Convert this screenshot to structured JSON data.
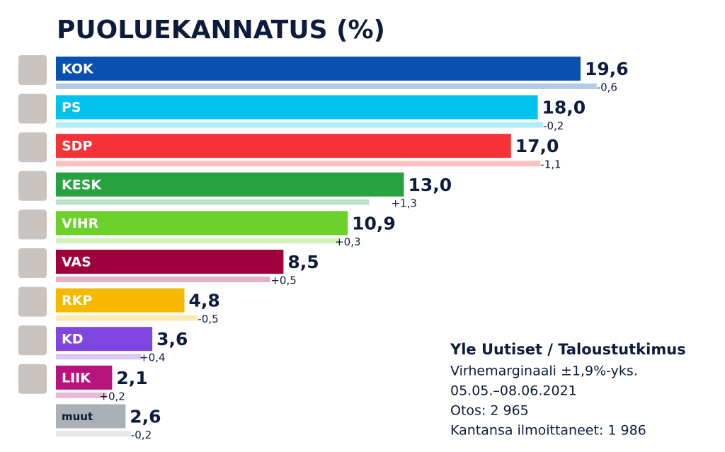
{
  "chart_data": {
    "type": "bar",
    "title": "PUOLUEKANNATUS (%)",
    "categories": [
      "KOK",
      "PS",
      "SDP",
      "KESK",
      "VIHR",
      "VAS",
      "RKP",
      "KD",
      "LIIK",
      "muut"
    ],
    "values": [
      19.6,
      18.0,
      17.0,
      13.0,
      10.9,
      8.5,
      4.8,
      3.6,
      2.1,
      2.6
    ],
    "value_labels": [
      "19,6",
      "18,0",
      "17,0",
      "13,0",
      "10,9",
      "8,5",
      "4,8",
      "3,6",
      "2,1",
      "2,6"
    ],
    "changes": [
      -0.6,
      -0.2,
      -1.1,
      1.3,
      0.3,
      0.5,
      -0.5,
      0.4,
      0.2,
      -0.2
    ],
    "change_labels": [
      "-0,6",
      "-0,2",
      "-1,1",
      "+1,3",
      "+0,3",
      "+0,5",
      "-0,5",
      "+0,4",
      "+0,2",
      "-0,2"
    ],
    "colors": [
      "#0a50b0",
      "#00c2ef",
      "#f43238",
      "#26a23f",
      "#6cd12b",
      "#9f003b",
      "#f7b900",
      "#7f47df",
      "#b8137d",
      "#a9b0b6"
    ],
    "source": "Yle Uutiset / Taloustutkimus",
    "notes": [
      "Virhemarginaali ±1,9%-yks.",
      "05.05.–08.06.2021",
      "Otos: 2 965",
      "Kantansa ilmoittaneet: 1 986"
    ]
  }
}
